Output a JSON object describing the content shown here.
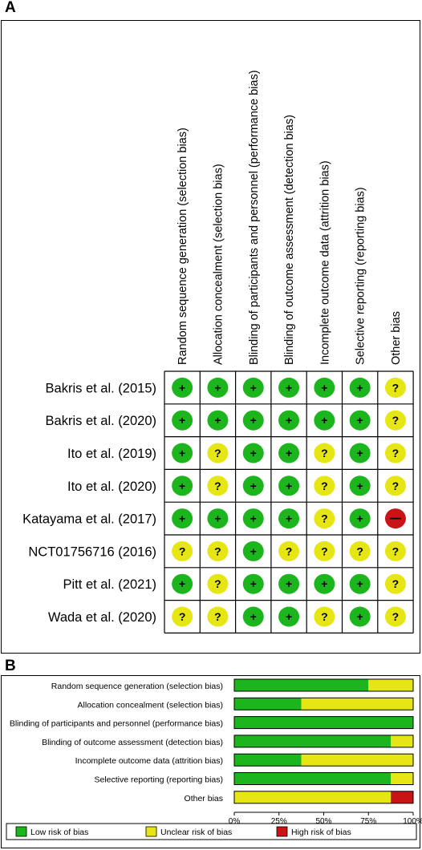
{
  "panel_a_label": "A",
  "panel_b_label": "B",
  "colors": {
    "low": "#1db51d",
    "unclear": "#e6e614",
    "high": "#c81414"
  },
  "symbols": {
    "low": "+",
    "unclear": "?",
    "high": "—"
  },
  "chart_data": [
    {
      "type": "table",
      "columns": [
        "Random sequence generation (selection bias)",
        "Allocation concealment (selection bias)",
        "Blinding of participants and personnel (performance bias)",
        "Blinding of outcome assessment (detection bias)",
        "Incomplete outcome data (attrition bias)",
        "Selective reporting (reporting bias)",
        "Other bias"
      ],
      "rows": [
        {
          "study": "Bakris et al. (2015)",
          "ratings": [
            "low",
            "low",
            "low",
            "low",
            "low",
            "low",
            "unclear"
          ]
        },
        {
          "study": "Bakris et al. (2020)",
          "ratings": [
            "low",
            "low",
            "low",
            "low",
            "low",
            "low",
            "unclear"
          ]
        },
        {
          "study": "Ito et al. (2019)",
          "ratings": [
            "low",
            "unclear",
            "low",
            "low",
            "unclear",
            "low",
            "unclear"
          ]
        },
        {
          "study": "Ito et al. (2020)",
          "ratings": [
            "low",
            "unclear",
            "low",
            "low",
            "unclear",
            "low",
            "unclear"
          ]
        },
        {
          "study": "Katayama et al. (2017)",
          "ratings": [
            "low",
            "low",
            "low",
            "low",
            "unclear",
            "low",
            "high"
          ]
        },
        {
          "study": "NCT01756716 (2016)",
          "ratings": [
            "unclear",
            "unclear",
            "low",
            "unclear",
            "unclear",
            "unclear",
            "unclear"
          ]
        },
        {
          "study": "Pitt et al. (2021)",
          "ratings": [
            "low",
            "unclear",
            "low",
            "low",
            "low",
            "low",
            "unclear"
          ]
        },
        {
          "study": "Wada et al. (2020)",
          "ratings": [
            "unclear",
            "unclear",
            "low",
            "low",
            "unclear",
            "low",
            "unclear"
          ]
        }
      ]
    },
    {
      "type": "bar",
      "orientation": "horizontal",
      "stacked": true,
      "categories": [
        "Random sequence generation (selection bias)",
        "Allocation concealment (selection bias)",
        "Blinding of participants and personnel (performance bias)",
        "Blinding of outcome assessment (detection bias)",
        "Incomplete outcome data (attrition bias)",
        "Selective reporting (reporting bias)",
        "Other bias"
      ],
      "series": [
        {
          "name": "Low risk of bias",
          "color": "#1db51d",
          "values": [
            75,
            37.5,
            100,
            87.5,
            37.5,
            87.5,
            0
          ]
        },
        {
          "name": "Unclear risk of bias",
          "color": "#e6e614",
          "values": [
            25,
            62.5,
            0,
            12.5,
            62.5,
            12.5,
            87.5
          ]
        },
        {
          "name": "High risk of bias",
          "color": "#c81414",
          "values": [
            0,
            0,
            0,
            0,
            0,
            0,
            12.5
          ]
        }
      ],
      "xticks": [
        "0%",
        "25%",
        "50%",
        "75%",
        "100%"
      ],
      "xlim": [
        0,
        100
      ],
      "legend": "bottom"
    }
  ]
}
